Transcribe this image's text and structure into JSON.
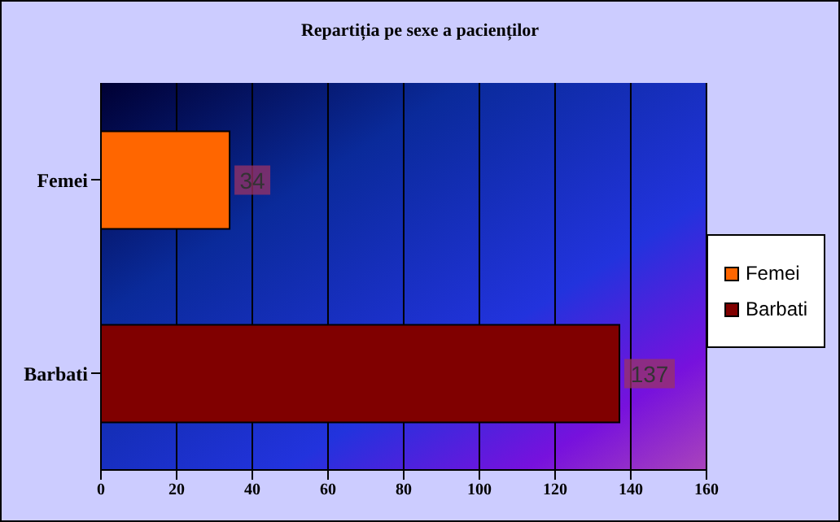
{
  "chart_data": {
    "type": "bar",
    "orientation": "horizontal",
    "stacked": true,
    "title": "Repartiția pe sexe a pacienților",
    "categories": [
      "Femei",
      "Barbati"
    ],
    "series": [
      {
        "name": "Femei",
        "color": "#ff6600",
        "values": [
          34,
          null
        ]
      },
      {
        "name": "Barbati",
        "color": "#800000",
        "values": [
          null,
          137
        ]
      }
    ],
    "xlim": [
      0,
      160
    ],
    "xticks": [
      0,
      20,
      40,
      60,
      80,
      100,
      120,
      140,
      160
    ],
    "grid": "x",
    "legend": "right",
    "data_labels": true
  }
}
